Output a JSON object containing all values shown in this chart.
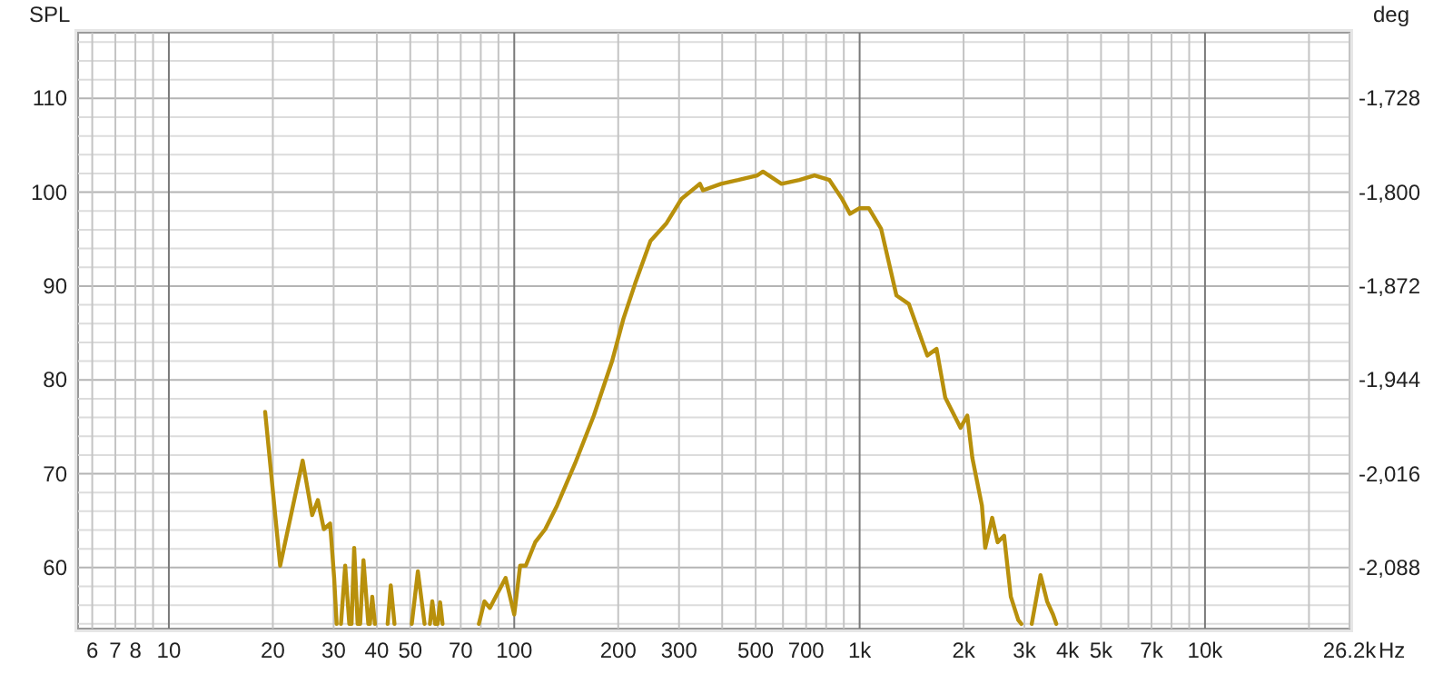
{
  "chart_data": {
    "type": "line",
    "ylabel": "SPL",
    "y2label": "deg",
    "log": "x",
    "xlabel": "Hz",
    "grid": true,
    "marker": "none",
    "line_style": "solid",
    "xlim": [
      5.46,
      26200
    ],
    "ylim": [
      53.5,
      117
    ],
    "y2lim": [
      -2134.8,
      -1677.6
    ],
    "xticks": [
      6,
      7,
      8,
      {
        "value": 9,
        "label": null
      },
      10,
      20,
      30,
      40,
      50,
      {
        "value": 60,
        "label": null
      },
      70,
      {
        "value": 80,
        "label": null
      },
      {
        "value": 90,
        "label": null
      },
      100,
      200,
      300,
      {
        "value": 400,
        "label": null
      },
      500,
      {
        "value": 600,
        "label": null
      },
      700,
      {
        "value": 800,
        "label": null
      },
      {
        "value": 900,
        "label": null
      },
      {
        "value": 1000,
        "label": "1k"
      },
      {
        "value": 2000,
        "label": "2k"
      },
      {
        "value": 3000,
        "label": "3k"
      },
      {
        "value": 4000,
        "label": "4k"
      },
      {
        "value": 5000,
        "label": "5k"
      },
      {
        "value": 6000,
        "label": null
      },
      {
        "value": 7000,
        "label": "7k"
      },
      {
        "value": 8000,
        "label": null
      },
      {
        "value": 9000,
        "label": null
      },
      {
        "value": 10000,
        "label": "10k"
      },
      {
        "value": 20000,
        "label": null
      },
      {
        "value": 26200,
        "label": "26.2k"
      }
    ],
    "yticks": [
      {
        "value": 54,
        "label": null
      },
      {
        "value": 56,
        "label": null
      },
      {
        "value": 58,
        "label": null
      },
      60,
      {
        "value": 62,
        "label": null
      },
      {
        "value": 64,
        "label": null
      },
      {
        "value": 66,
        "label": null
      },
      {
        "value": 68,
        "label": null
      },
      70,
      {
        "value": 72,
        "label": null
      },
      {
        "value": 74,
        "label": null
      },
      {
        "value": 76,
        "label": null
      },
      {
        "value": 78,
        "label": null
      },
      80,
      {
        "value": 82,
        "label": null
      },
      {
        "value": 84,
        "label": null
      },
      {
        "value": 86,
        "label": null
      },
      {
        "value": 88,
        "label": null
      },
      90,
      {
        "value": 92,
        "label": null
      },
      {
        "value": 94,
        "label": null
      },
      {
        "value": 96,
        "label": null
      },
      {
        "value": 98,
        "label": null
      },
      100,
      {
        "value": 102,
        "label": null
      },
      {
        "value": 104,
        "label": null
      },
      {
        "value": 106,
        "label": null
      },
      {
        "value": 108,
        "label": null
      },
      110,
      {
        "value": 112,
        "label": null
      },
      {
        "value": 114,
        "label": null
      },
      {
        "value": 116,
        "label": null
      }
    ],
    "y2ticks": [
      {
        "value": -2088,
        "label": "-2,088"
      },
      {
        "value": -2016,
        "label": "-2,016"
      },
      {
        "value": -1944,
        "label": "-1,944"
      },
      {
        "value": -1872,
        "label": "-1,872"
      },
      {
        "value": -1800,
        "label": "-1,800"
      },
      {
        "value": -1728,
        "label": "-1,728"
      }
    ],
    "series": [
      {
        "color": "#b8900c",
        "x": [
          19.0,
          21.0,
          24.4,
          26.0,
          27.0,
          28.1,
          29.3,
          30.1,
          30.6,
          null,
          31.5,
          32.4,
          33.3,
          33.8,
          34.4,
          35.2,
          35.8,
          36.6,
          37.8,
          38.2,
          38.8,
          39.5,
          null,
          43,
          43.9,
          45,
          null,
          50.5,
          52.6,
          55,
          null,
          57,
          57.9,
          59,
          null,
          60,
          61,
          62,
          null,
          79,
          82,
          85,
          94.4,
          100,
          104,
          108,
          115,
          123,
          133,
          150,
          170,
          192,
          207,
          224,
          248,
          276,
          305,
          345,
          352,
          397,
          445,
          506,
          525,
          594,
          669,
          740,
          818,
          889,
          938,
          1000,
          1063,
          1154,
          1278,
          1388,
          1570,
          1670,
          1770,
          1960,
          2050,
          2120,
          2260,
          2310,
          2420,
          2510,
          2620,
          2740,
          2880,
          2940,
          null,
          3150,
          3340,
          3490,
          3630,
          3710
        ],
        "values": [
          76.6,
          60.2,
          71.4,
          65.6,
          67.2,
          64.1,
          64.7,
          58.9,
          54,
          null,
          54,
          60.2,
          54,
          54,
          62.1,
          54,
          54,
          60.8,
          54,
          54,
          56.9,
          54,
          null,
          54,
          58.1,
          54,
          null,
          54,
          59.6,
          54,
          null,
          54,
          56.4,
          54,
          null,
          54,
          56.3,
          54,
          null,
          54,
          56.4,
          55.7,
          58.9,
          55,
          60.2,
          60.2,
          62.7,
          64.1,
          66.6,
          71.1,
          76.2,
          82.0,
          86.5,
          90.3,
          94.8,
          96.7,
          99.3,
          100.9,
          100.2,
          100.9,
          101.3,
          101.8,
          102.2,
          100.9,
          101.3,
          101.8,
          101.3,
          99.3,
          97.7,
          98.3,
          98.3,
          96.1,
          89.0,
          88.1,
          82.6,
          83.3,
          78.1,
          74.9,
          76.2,
          71.7,
          66.6,
          62.1,
          65.3,
          62.7,
          63.4,
          56.9,
          54.4,
          54,
          null,
          54,
          59.2,
          56.4,
          55,
          54
        ]
      }
    ]
  }
}
